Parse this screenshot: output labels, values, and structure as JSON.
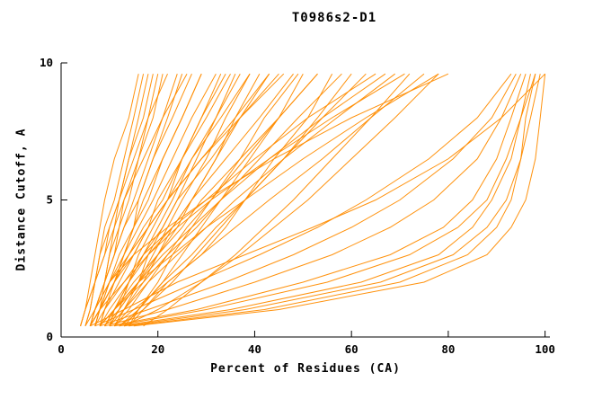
{
  "chart_data": {
    "type": "line",
    "title": "T0986s2-D1",
    "xlabel": "Percent of Residues (CA)",
    "ylabel": "Distance Cutoff, A",
    "xlim": [
      0,
      101
    ],
    "ylim": [
      0,
      10
    ],
    "x_ticks": [
      0,
      20,
      40,
      60,
      80,
      100
    ],
    "y_ticks": [
      0,
      5,
      10
    ],
    "grid": false,
    "legend": "none",
    "line_color": "#ff8c00",
    "axis_color": "#000000",
    "y_levels": [
      0.4,
      1,
      2,
      3,
      4,
      5,
      6.5,
      8,
      9.6
    ],
    "series_x": [
      [
        12,
        35,
        62,
        78,
        85,
        89,
        93,
        95,
        97
      ],
      [
        10,
        28,
        50,
        68,
        79,
        85,
        90,
        93,
        96
      ],
      [
        14,
        42,
        70,
        84,
        90,
        93,
        95,
        97,
        99
      ],
      [
        9,
        22,
        40,
        56,
        68,
        77,
        86,
        91,
        95
      ],
      [
        11,
        30,
        55,
        72,
        82,
        88,
        92,
        95,
        98
      ],
      [
        8,
        18,
        34,
        48,
        60,
        70,
        81,
        89,
        94
      ],
      [
        13,
        38,
        66,
        81,
        88,
        92,
        95,
        96,
        98
      ],
      [
        7,
        15,
        28,
        41,
        53,
        63,
        76,
        86,
        93
      ],
      [
        6,
        13,
        24,
        38,
        52,
        65,
        80,
        91,
        100
      ],
      [
        15,
        45,
        75,
        88,
        93,
        96,
        98,
        99,
        100
      ],
      [
        8,
        11,
        17,
        22,
        28,
        33,
        41,
        49,
        58
      ],
      [
        9,
        11,
        16,
        21,
        27,
        33,
        43,
        54,
        67
      ],
      [
        13,
        20,
        29,
        37,
        44,
        51,
        60,
        69,
        78
      ],
      [
        12,
        16,
        21,
        27,
        32,
        38,
        46,
        54,
        63
      ],
      [
        8,
        9,
        13,
        18,
        24,
        31,
        43,
        56,
        71
      ],
      [
        12,
        17,
        22,
        29,
        34,
        38,
        44,
        51,
        56
      ],
      [
        10,
        13,
        18,
        24,
        30,
        36,
        46,
        57,
        69
      ],
      [
        5,
        7,
        10,
        15,
        22,
        30,
        44,
        60,
        80
      ],
      [
        14,
        17,
        23,
        28,
        33,
        38,
        46,
        53,
        60
      ],
      [
        7,
        8,
        13,
        17,
        23,
        30,
        40,
        51,
        65
      ],
      [
        11,
        15,
        22,
        29,
        36,
        43,
        54,
        64,
        75
      ],
      [
        11,
        14,
        18,
        22,
        26,
        31,
        38,
        45,
        53
      ],
      [
        8,
        11,
        16,
        23,
        30,
        38,
        50,
        63,
        78
      ],
      [
        17,
        22,
        29,
        36,
        42,
        48,
        56,
        64,
        72
      ],
      [
        7,
        9,
        12,
        15,
        18,
        20,
        25,
        29,
        34
      ],
      [
        10,
        12,
        16,
        19,
        22,
        25,
        30,
        34,
        39
      ],
      [
        6,
        8,
        11,
        14,
        18,
        22,
        29,
        36,
        43
      ],
      [
        11,
        13,
        16,
        18,
        21,
        24,
        28,
        32,
        37
      ],
      [
        8,
        10,
        14,
        18,
        23,
        27,
        34,
        41,
        48
      ],
      [
        9,
        12,
        16,
        20,
        23,
        27,
        32,
        36,
        41
      ],
      [
        10,
        11,
        14,
        17,
        21,
        24,
        31,
        37,
        45
      ],
      [
        6,
        8,
        11,
        14,
        17,
        21,
        25,
        30,
        35
      ],
      [
        13,
        16,
        21,
        25,
        29,
        33,
        39,
        45,
        50
      ],
      [
        7,
        8,
        11,
        13,
        16,
        19,
        23,
        27,
        32
      ],
      [
        9,
        11,
        15,
        20,
        25,
        29,
        37,
        45,
        53
      ],
      [
        6,
        8,
        10,
        12,
        15,
        18,
        21,
        25,
        29
      ],
      [
        11,
        13,
        17,
        20,
        24,
        27,
        32,
        37,
        43
      ],
      [
        9,
        11,
        14,
        17,
        20,
        23,
        27,
        32,
        36
      ],
      [
        6,
        8,
        10,
        14,
        18,
        22,
        29,
        37,
        46
      ],
      [
        10,
        12,
        14,
        16,
        19,
        22,
        25,
        29,
        33
      ],
      [
        6,
        8,
        11,
        15,
        18,
        22,
        27,
        33,
        39
      ],
      [
        14,
        16,
        20,
        23,
        27,
        31,
        37,
        42,
        49
      ],
      [
        5,
        6,
        7,
        8,
        9,
        11,
        13,
        15,
        17
      ],
      [
        5,
        6,
        7,
        9,
        10,
        12,
        14,
        17,
        19
      ],
      [
        6,
        7,
        9,
        10,
        12,
        13,
        16,
        19,
        21
      ],
      [
        6,
        7,
        9,
        11,
        13,
        15,
        18,
        21,
        24
      ],
      [
        4,
        5,
        6,
        7,
        8,
        9,
        11,
        14,
        16
      ],
      [
        8,
        9,
        11,
        13,
        15,
        16,
        19,
        22,
        25
      ],
      [
        6,
        7,
        9,
        11,
        13,
        16,
        19,
        23,
        27
      ],
      [
        6,
        7,
        9,
        10,
        11,
        12,
        14,
        16,
        18
      ],
      [
        4,
        5,
        7,
        8,
        10,
        12,
        15,
        18,
        22
      ],
      [
        6,
        7,
        10,
        13,
        15,
        17,
        21,
        25,
        29
      ],
      [
        7,
        8,
        9,
        11,
        12,
        14,
        16,
        18,
        20
      ],
      [
        4,
        5,
        7,
        9,
        11,
        13,
        17,
        21,
        26
      ]
    ]
  }
}
